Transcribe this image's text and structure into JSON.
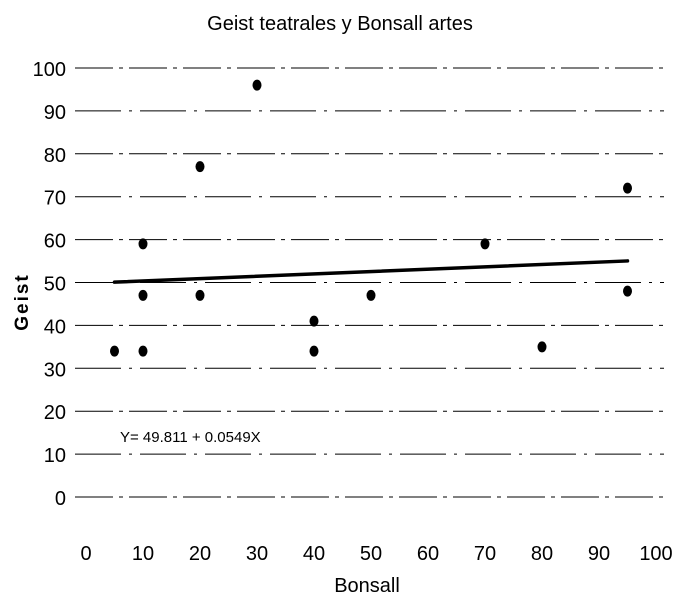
{
  "chart_data": {
    "type": "scatter",
    "title": "Geist teatrales y Bonsall artes",
    "xlabel": "Bonsall",
    "ylabel": "Geist",
    "xlim": [
      0,
      100
    ],
    "ylim": [
      0,
      100
    ],
    "x_ticks": [
      0,
      10,
      20,
      30,
      40,
      50,
      60,
      70,
      80,
      90,
      100
    ],
    "y_ticks": [
      0,
      10,
      20,
      30,
      40,
      50,
      60,
      70,
      80,
      90,
      100
    ],
    "grid": true,
    "legend": "none",
    "points": [
      {
        "x": 5,
        "y": 34
      },
      {
        "x": 10,
        "y": 59
      },
      {
        "x": 10,
        "y": 47
      },
      {
        "x": 10,
        "y": 34
      },
      {
        "x": 20,
        "y": 77
      },
      {
        "x": 20,
        "y": 47
      },
      {
        "x": 30,
        "y": 96
      },
      {
        "x": 40,
        "y": 41
      },
      {
        "x": 40,
        "y": 34
      },
      {
        "x": 50,
        "y": 47
      },
      {
        "x": 70,
        "y": 59
      },
      {
        "x": 80,
        "y": 35
      },
      {
        "x": 95,
        "y": 72
      },
      {
        "x": 95,
        "y": 48
      }
    ],
    "trendline": {
      "intercept": 49.811,
      "slope": 0.0549,
      "x_range": [
        5,
        95
      ],
      "label": "Y= 49.811 + 0.0549X"
    },
    "colors": {
      "points": "#000000",
      "line": "#000000",
      "grid": "#000000"
    }
  }
}
